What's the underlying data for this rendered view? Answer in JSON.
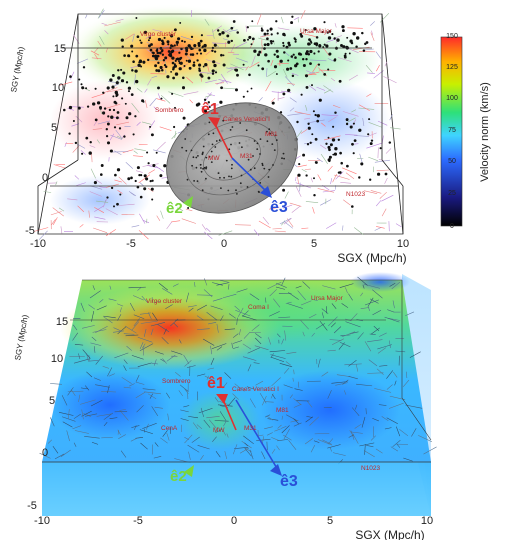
{
  "chart_data": [
    {
      "type": "scatter",
      "xlabel": "SGX (Mpc/h)",
      "ylabel": "SGY (Mpc/h)",
      "xlim": [
        -10,
        10
      ],
      "ylim": [
        -5,
        15
      ],
      "x_ticks": [
        "-10",
        "-5",
        "0",
        "5",
        "10"
      ],
      "y_ticks": [
        "-5",
        "0",
        "5",
        "10",
        "15"
      ],
      "colorbar": {
        "label": "Velocity norm (km/s)",
        "range": [
          0,
          150
        ],
        "ticks": [
          "0",
          "25",
          "50",
          "75",
          "100",
          "125",
          "150"
        ],
        "colors": [
          "#000000",
          "#1a1a80",
          "#2c6bff",
          "#3fd4ff",
          "#2de07a",
          "#c8f000",
          "#ffb000",
          "#ff2a2a"
        ]
      },
      "annotations": [
        {
          "label": "Virgo cluster",
          "x": -6.5,
          "y": 15.8
        },
        {
          "label": "Ursa Major",
          "x": 6.0,
          "y": 16.0
        },
        {
          "label": "Sombrero",
          "x": -5.5,
          "y": 7.0
        },
        {
          "label": "Canes Venatici I",
          "x": 0.3,
          "y": 5.8
        },
        {
          "label": "M81",
          "x": 3.5,
          "y": 4.8
        },
        {
          "label": "MW",
          "x": -1.5,
          "y": 2.5
        },
        {
          "label": "M31",
          "x": 0.8,
          "y": 2.5
        },
        {
          "label": "N1023",
          "x": 8.0,
          "y": -1.0
        }
      ],
      "vectors": [
        {
          "label": "ê1",
          "color": "#e03030",
          "from": [
            0,
            2
          ],
          "to": [
            -0.6,
            6.0
          ]
        },
        {
          "label": "ê3",
          "color": "#2a4fd8",
          "from": [
            0,
            2
          ],
          "to": [
            3.8,
            -2.5
          ]
        },
        {
          "label": "ê2",
          "color": "#7ad63c",
          "from": [
            0,
            2
          ],
          "to": [
            -3.3,
            -3.8
          ]
        }
      ]
    },
    {
      "type": "heatmap",
      "xlabel": "SGX (Mpc/h)",
      "ylabel": "SGY (Mpc/h)",
      "xlim": [
        -10,
        10
      ],
      "ylim": [
        -5,
        15
      ],
      "x_ticks": [
        "-10",
        "-5",
        "0",
        "5",
        "10"
      ],
      "y_ticks": [
        "-5",
        "0",
        "5",
        "10",
        "15"
      ],
      "annotations": [
        {
          "label": "Virgo cluster",
          "x": -5.0,
          "y": 15.3
        },
        {
          "label": "Coma I",
          "x": 0.8,
          "y": 15.5
        },
        {
          "label": "Ursa Major",
          "x": 6.0,
          "y": 16.5
        },
        {
          "label": "Sombrero",
          "x": -4.5,
          "y": 5.8
        },
        {
          "label": "Canes Venatici I",
          "x": 1.5,
          "y": 5.4
        },
        {
          "label": "M81",
          "x": 4.3,
          "y": 2.8
        },
        {
          "label": "CenA",
          "x": -3.7,
          "y": 1.2
        },
        {
          "label": "MW",
          "x": -1.2,
          "y": 1.0
        },
        {
          "label": "M31",
          "x": 0.9,
          "y": 1.2
        },
        {
          "label": "N1023",
          "x": 8.5,
          "y": -1.8
        }
      ],
      "vectors": [
        {
          "label": "ê1",
          "color": "#e03030",
          "from": [
            0,
            2
          ],
          "to": [
            -0.7,
            4.2
          ]
        },
        {
          "label": "ê3",
          "color": "#2a4fd8",
          "from": [
            0,
            2
          ],
          "to": [
            3.0,
            -4.0
          ]
        },
        {
          "label": "ê2",
          "color": "#7ad63c",
          "from": [
            0,
            2
          ],
          "to": [
            -3.0,
            -3.5
          ]
        }
      ]
    }
  ]
}
